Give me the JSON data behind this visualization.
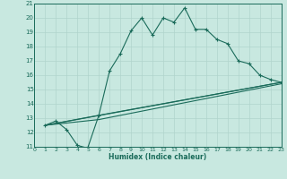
{
  "xlabel": "Humidex (Indice chaleur)",
  "xlim": [
    0,
    23
  ],
  "ylim": [
    11,
    21
  ],
  "xticks": [
    0,
    1,
    2,
    3,
    4,
    5,
    6,
    7,
    8,
    9,
    10,
    11,
    12,
    13,
    14,
    15,
    16,
    17,
    18,
    19,
    20,
    21,
    22,
    23
  ],
  "yticks": [
    11,
    12,
    13,
    14,
    15,
    16,
    17,
    18,
    19,
    20,
    21
  ],
  "bg_color": "#c8e8e0",
  "line_color": "#1a6b5a",
  "grid_color": "#b0d4cc",
  "curve_x": [
    1,
    2,
    3,
    4,
    5,
    5,
    6,
    7,
    8,
    9,
    10,
    11,
    12,
    13,
    14,
    15,
    16,
    17,
    18,
    19,
    20,
    21,
    22,
    23
  ],
  "curve_y": [
    12.5,
    12.8,
    12.2,
    11.1,
    10.9,
    11.0,
    13.2,
    16.3,
    17.5,
    19.1,
    20.0,
    18.8,
    20.0,
    19.7,
    20.7,
    19.2,
    19.2,
    18.5,
    18.2,
    17.0,
    16.8,
    16.0,
    15.7,
    15.5
  ],
  "trend1_x": [
    1,
    23
  ],
  "trend1_y": [
    12.5,
    15.5
  ],
  "trend2_x": [
    1,
    6,
    23
  ],
  "trend2_y": [
    12.5,
    13.2,
    15.5
  ],
  "trend3_x": [
    1,
    6,
    23
  ],
  "trend3_y": [
    12.5,
    12.9,
    15.4
  ]
}
